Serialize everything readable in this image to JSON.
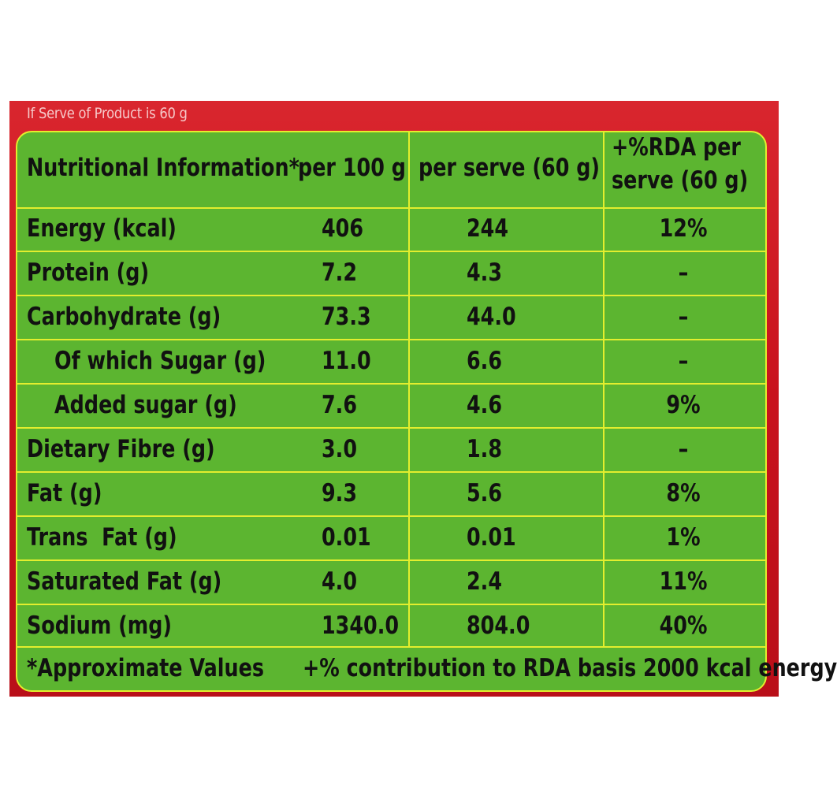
{
  "caption": "If Serve of Product is 60 g",
  "header": {
    "nutrient": "Nutritional Information*",
    "per100": "per 100 g",
    "perServe": "per serve (60 g)",
    "rdaLine1": "+%RDA per",
    "rdaLine2": "serve (60 g)"
  },
  "rows": [
    {
      "name": "Energy (kcal)",
      "per100": "406",
      "perServe": "244",
      "rda": "12%"
    },
    {
      "name": "Protein (g)",
      "per100": "7.2",
      "perServe": "4.3",
      "rda": "–"
    },
    {
      "name": "Carbohydrate (g)",
      "per100": "73.3",
      "perServe": "44.0",
      "rda": "–"
    },
    {
      "name": "Of which Sugar (g)",
      "per100": "11.0",
      "perServe": "6.6",
      "rda": "–"
    },
    {
      "name": "Added sugar (g)",
      "per100": "7.6",
      "perServe": "4.6",
      "rda": "9%"
    },
    {
      "name": "Dietary Fibre (g)",
      "per100": "3.0",
      "perServe": "1.8",
      "rda": "–"
    },
    {
      "name": "Fat (g)",
      "per100": "9.3",
      "perServe": "5.6",
      "rda": "8%"
    },
    {
      "name": "Trans  Fat (g)",
      "per100": "0.01",
      "perServe": "0.01",
      "rda": "1%"
    },
    {
      "name": "Saturated Fat (g)",
      "per100": "4.0",
      "perServe": "2.4",
      "rda": "11%"
    },
    {
      "name": "Sodium (mg)",
      "per100": "1340.0",
      "perServe": "804.0",
      "rda": "40%"
    }
  ],
  "footer": {
    "approx": "*Approximate Values",
    "note": "+% contribution to RDA basis 2000 kcal energy"
  },
  "colors": {
    "frame": "#c8121c",
    "panel": "#5cb530",
    "gridLine": "#e3ee2e",
    "text": "#111111"
  }
}
